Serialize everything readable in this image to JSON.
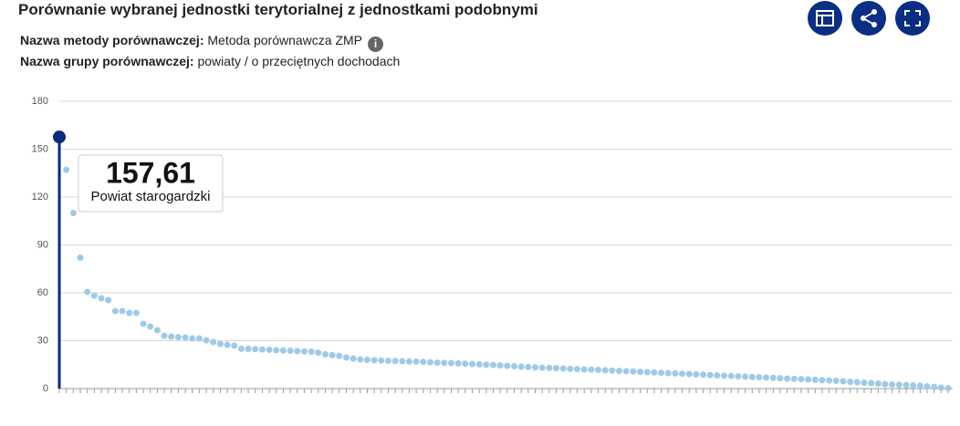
{
  "header": {
    "title": "Porównanie wybranej jednostki terytorialnej z jednostkami podobnymi",
    "method_label": "Nazwa metody porównawczej:",
    "method_value": "Metoda porównawcza ZMP",
    "group_label": "Nazwa grupy porównawczej:",
    "group_value": "powiaty / o przeciętnych dochodach"
  },
  "chart_data": {
    "type": "scatter",
    "color": "#9ecae8",
    "highlight_color": "#0b2a7a",
    "highlight": {
      "label": "157,61",
      "name": "Powiat starogardzki"
    },
    "values": [
      157.61,
      137,
      110,
      82,
      60.6,
      58.3,
      56.6,
      55.4,
      48.6,
      48.6,
      47.4,
      47.4,
      40.6,
      38.9,
      36.6,
      33.1,
      32.6,
      32.3,
      32,
      31.4,
      31.4,
      30.3,
      29.1,
      28,
      27.4,
      26.9,
      25,
      24.9,
      24.7,
      24.5,
      24.3,
      24.1,
      23.9,
      23.7,
      23.5,
      23.3,
      23.1,
      22.5,
      21.5,
      21,
      20.5,
      19.5,
      18.8,
      18.3,
      18,
      17.8,
      17.6,
      17.4,
      17.3,
      17.2,
      17,
      16.9,
      16.7,
      16.5,
      16.3,
      16.1,
      16,
      15.8,
      15.6,
      15.4,
      15.2,
      15,
      14.8,
      14.5,
      14.2,
      14,
      13.7,
      13.5,
      13.3,
      13.1,
      13,
      12.8,
      12.6,
      12.4,
      12.2,
      12,
      11.9,
      11.7,
      11.5,
      11.3,
      11.1,
      10.9,
      10.7,
      10.5,
      10.3,
      10.1,
      9.9,
      9.7,
      9.5,
      9.3,
      9.1,
      8.9,
      8.7,
      8.5,
      8.3,
      8.1,
      7.9,
      7.7,
      7.5,
      7.3,
      7.1,
      6.9,
      6.7,
      6.5,
      6.3,
      6.1,
      5.9,
      5.7,
      5.5,
      5.3,
      5.1,
      4.9,
      4.6,
      4.3,
      4,
      3.7,
      3.4,
      3.1,
      2.8,
      2.6,
      2.4,
      2.2,
      2,
      1.8,
      1.4,
      1,
      0.6,
      0.3
    ],
    "ylim": [
      0,
      180
    ],
    "yticks": [
      0,
      30,
      60,
      90,
      120,
      150,
      180
    ],
    "grid": true
  }
}
